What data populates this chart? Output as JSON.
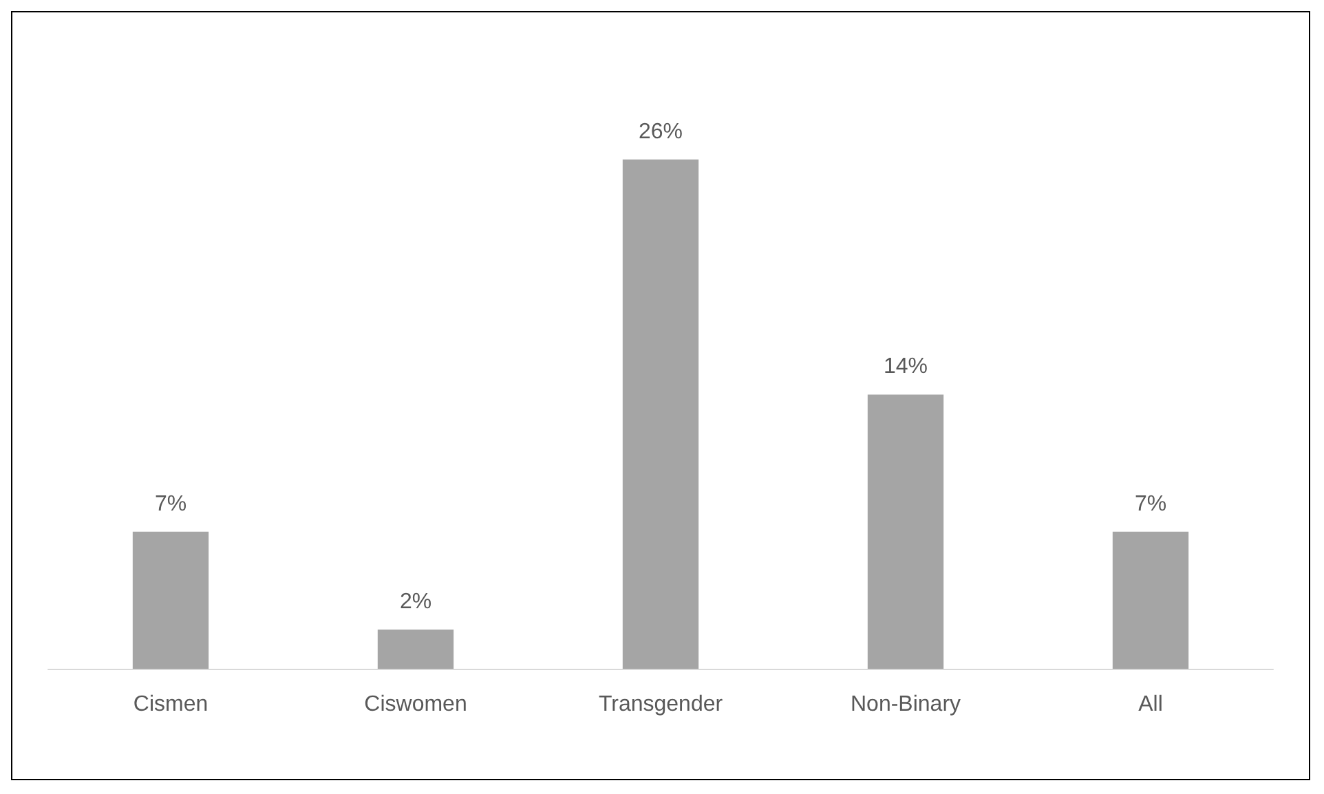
{
  "chart_data": {
    "type": "bar",
    "categories": [
      "Cismen",
      "Ciswomen",
      "Transgender",
      "Non-Binary",
      "All"
    ],
    "values": [
      7,
      2,
      26,
      14,
      7
    ],
    "color": "#a5a5a5",
    "value_labels": [
      "7%",
      "2%",
      "26%",
      "14%",
      "7%"
    ]
  }
}
